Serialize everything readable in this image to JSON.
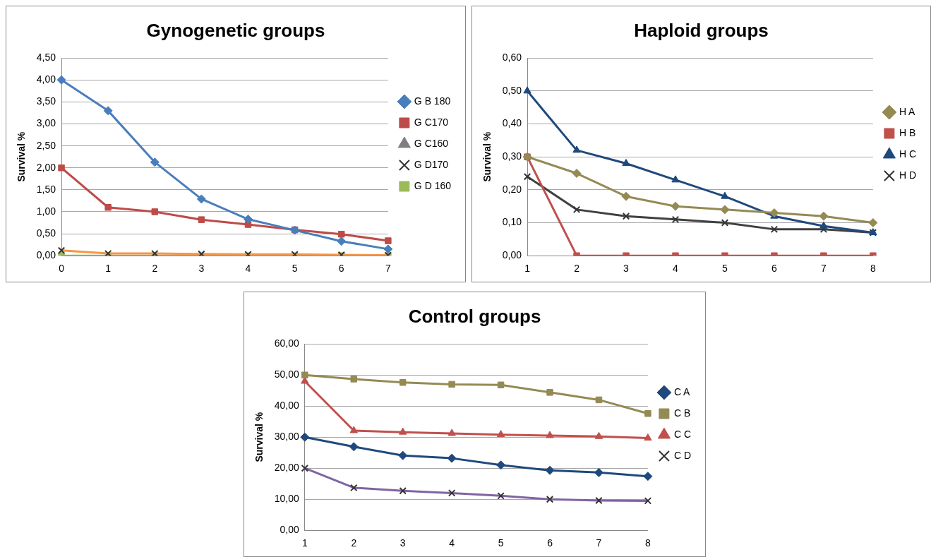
{
  "chart_data": [
    {
      "type": "line",
      "title": "Gynogenetic groups",
      "ylabel": "Survival %",
      "categories": [
        "0",
        "1",
        "2",
        "3",
        "4",
        "5",
        "6",
        "7"
      ],
      "ylim": [
        0,
        4.5
      ],
      "yticks": [
        {
          "value": 0,
          "label": "0,00"
        },
        {
          "value": 0.5,
          "label": "0,50"
        },
        {
          "value": 1,
          "label": "1,00"
        },
        {
          "value": 1.5,
          "label": "1,50"
        },
        {
          "value": 2,
          "label": "2,00"
        },
        {
          "value": 2.5,
          "label": "2,50"
        },
        {
          "value": 3,
          "label": "3,00"
        },
        {
          "value": 3.5,
          "label": "3,50"
        },
        {
          "value": 4,
          "label": "4,00"
        },
        {
          "value": 4.5,
          "label": "4,50"
        }
      ],
      "grid": "y",
      "legend": "right",
      "line_style": "solid",
      "series": [
        {
          "name": "G B 180",
          "color": "#4a7ebb",
          "marker": "diamond",
          "values": [
            4.0,
            3.3,
            2.13,
            1.29,
            0.83,
            0.58,
            0.33,
            0.15
          ]
        },
        {
          "name": "G C170",
          "color": "#be4b48",
          "marker": "square",
          "values": [
            2.0,
            1.1,
            1.0,
            0.82,
            0.71,
            0.59,
            0.49,
            0.34
          ]
        },
        {
          "name": "G C160",
          "color": "#7f7f7f",
          "marker": "triangle",
          "values": [
            null,
            null,
            null,
            null,
            null,
            null,
            null,
            null
          ]
        },
        {
          "name": "G D170",
          "color": "#f79646",
          "marker": "cross",
          "values": [
            0.12,
            0.05,
            0.05,
            0.04,
            0.03,
            0.03,
            0.02,
            0.01
          ]
        },
        {
          "name": "G D 160",
          "color": "#9bbb59",
          "marker": "square",
          "values": [
            0,
            0,
            0,
            0,
            0,
            0,
            0,
            0
          ]
        }
      ]
    },
    {
      "type": "line",
      "title": "Haploid groups",
      "ylabel": "Survival %",
      "categories": [
        "1",
        "2",
        "3",
        "4",
        "5",
        "6",
        "7",
        "8"
      ],
      "ylim": [
        0,
        0.6
      ],
      "yticks": [
        {
          "value": 0,
          "label": "0,00"
        },
        {
          "value": 0.1,
          "label": "0,10"
        },
        {
          "value": 0.2,
          "label": "0,20"
        },
        {
          "value": 0.3,
          "label": "0,30"
        },
        {
          "value": 0.4,
          "label": "0,40"
        },
        {
          "value": 0.5,
          "label": "0,50"
        },
        {
          "value": 0.6,
          "label": "0,60"
        }
      ],
      "grid": "y",
      "legend": "right",
      "line_style": "solid",
      "series": [
        {
          "name": "H A",
          "color": "#948a54",
          "marker": "diamond",
          "values": [
            0.3,
            0.25,
            0.18,
            0.15,
            0.14,
            0.13,
            0.12,
            0.1
          ]
        },
        {
          "name": "H B",
          "color": "#c0504d",
          "marker": "square",
          "values": [
            0.3,
            0,
            0,
            0,
            0,
            0,
            0,
            0
          ]
        },
        {
          "name": "H C",
          "color": "#1f497d",
          "marker": "triangle",
          "values": [
            0.5,
            0.32,
            0.28,
            0.23,
            0.18,
            0.12,
            0.09,
            0.07
          ]
        },
        {
          "name": "H D",
          "color": "#404040",
          "marker": "cross",
          "values": [
            0.24,
            0.14,
            0.12,
            0.11,
            0.1,
            0.08,
            0.08,
            0.07
          ]
        }
      ]
    },
    {
      "type": "line",
      "title": "Control groups",
      "ylabel": "Survival %",
      "categories": [
        "1",
        "2",
        "3",
        "4",
        "5",
        "6",
        "7",
        "8"
      ],
      "ylim": [
        0,
        60
      ],
      "yticks": [
        {
          "value": 0,
          "label": "0,00"
        },
        {
          "value": 10,
          "label": "10,00"
        },
        {
          "value": 20,
          "label": "20,00"
        },
        {
          "value": 30,
          "label": "30,00"
        },
        {
          "value": 40,
          "label": "40,00"
        },
        {
          "value": 50,
          "label": "50,00"
        },
        {
          "value": 60,
          "label": "60,00"
        }
      ],
      "grid": "y",
      "legend": "right",
      "line_style": "solid",
      "series": [
        {
          "name": "C A",
          "color": "#1f497d",
          "marker": "diamond",
          "values": [
            30,
            26.9,
            24.1,
            23.2,
            21.0,
            19.3,
            18.6,
            17.4
          ]
        },
        {
          "name": "C B",
          "color": "#948a54",
          "marker": "square",
          "values": [
            50,
            48.7,
            47.6,
            47.0,
            46.8,
            44.4,
            42.0,
            37.6
          ]
        },
        {
          "name": "C C",
          "color": "#c0504d",
          "marker": "triangle",
          "values": [
            48,
            32.1,
            31.6,
            31.2,
            30.8,
            30.5,
            30.2,
            29.7
          ]
        },
        {
          "name": "C D",
          "color": "#8064a2",
          "marker": "cross",
          "values": [
            20,
            13.7,
            12.7,
            12.0,
            11.1,
            10.0,
            9.6,
            9.5
          ]
        }
      ]
    }
  ]
}
